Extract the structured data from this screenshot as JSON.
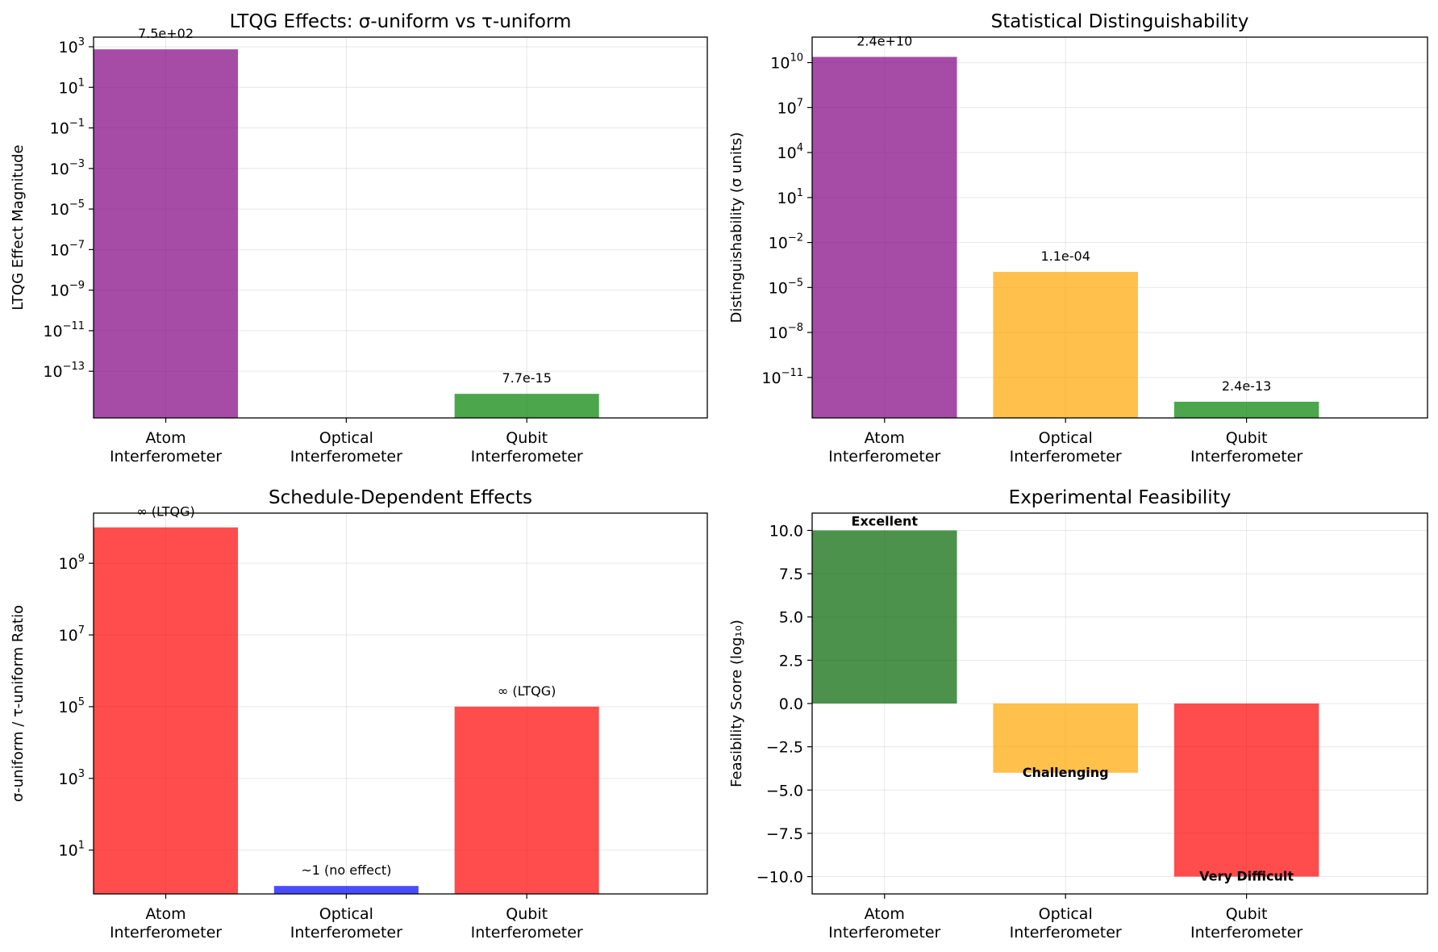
{
  "chart_data": [
    {
      "type": "bar",
      "title": "LTQG Effects: σ-uniform vs τ-uniform",
      "xlabel": "",
      "ylabel": "LTQG Effect Magnitude",
      "yscale": "log",
      "categories": [
        [
          "Atom",
          "Interferometer"
        ],
        [
          "Optical",
          "Interferometer"
        ],
        [
          "Qubit",
          "Interferometer"
        ]
      ],
      "values": [
        750,
        0,
        7.7e-15
      ],
      "colors": [
        "#800080",
        "#ffa500",
        "#008000"
      ],
      "bar_alpha": 0.7,
      "ylim": [
        5e-16,
        3000
      ],
      "yticks": [
        {
          "v": 1000.0,
          "e": "3"
        },
        {
          "v": 10.0,
          "e": "1"
        },
        {
          "v": 0.1,
          "e": "−1"
        },
        {
          "v": 0.001,
          "e": "−3"
        },
        {
          "v": 1e-05,
          "e": "−5"
        },
        {
          "v": 1e-07,
          "e": "−7"
        },
        {
          "v": 1e-09,
          "e": "−9"
        },
        {
          "v": 1e-11,
          "e": "−11"
        },
        {
          "v": 1e-13,
          "e": "−13"
        }
      ],
      "data_labels": [
        "7.5e+02",
        "",
        "7.7e-15"
      ],
      "grid": true
    },
    {
      "type": "bar",
      "title": "Statistical Distinguishability",
      "xlabel": "",
      "ylabel": "Distinguishability (σ units)",
      "yscale": "log",
      "categories": [
        [
          "Atom",
          "Interferometer"
        ],
        [
          "Optical",
          "Interferometer"
        ],
        [
          "Qubit",
          "Interferometer"
        ]
      ],
      "values": [
        24000000000.0,
        0.00011,
        2.4e-13
      ],
      "colors": [
        "#800080",
        "#ffa500",
        "#008000"
      ],
      "bar_alpha": 0.7,
      "ylim": [
        2e-14,
        500000000000.0
      ],
      "yticks": [
        {
          "v": 10000000000.0,
          "e": "10"
        },
        {
          "v": 10000000.0,
          "e": "7"
        },
        {
          "v": 10000.0,
          "e": "4"
        },
        {
          "v": 10.0,
          "e": "1"
        },
        {
          "v": 0.01,
          "e": "−2"
        },
        {
          "v": 1e-05,
          "e": "−5"
        },
        {
          "v": 1e-08,
          "e": "−8"
        },
        {
          "v": 1e-11,
          "e": "−11"
        }
      ],
      "data_labels": [
        "2.4e+10",
        "1.1e-04",
        "2.4e-13"
      ],
      "grid": true
    },
    {
      "type": "bar",
      "title": "Schedule-Dependent Effects",
      "xlabel": "",
      "ylabel": "σ-uniform / τ-uniform Ratio",
      "yscale": "log",
      "categories": [
        [
          "Atom",
          "Interferometer"
        ],
        [
          "Optical",
          "Interferometer"
        ],
        [
          "Qubit",
          "Interferometer"
        ]
      ],
      "values": [
        10000000000.0,
        1,
        100000.0
      ],
      "colors": [
        "#ff0000",
        "#0000ff",
        "#ff0000"
      ],
      "bar_alpha": 0.7,
      "ylim": [
        0.6,
        25000000000.0
      ],
      "yticks": [
        {
          "v": 1000000000.0,
          "e": "9"
        },
        {
          "v": 10000000.0,
          "e": "7"
        },
        {
          "v": 100000.0,
          "e": "5"
        },
        {
          "v": 1000.0,
          "e": "3"
        },
        {
          "v": 10.0,
          "e": "1"
        }
      ],
      "data_labels": [
        "∞ (LTQG)",
        "~1 (no effect)",
        "∞ (LTQG)"
      ],
      "grid": true
    },
    {
      "type": "bar",
      "title": "Experimental Feasibility",
      "xlabel": "",
      "ylabel": "Feasibility Score (log₁₀)",
      "yscale": "linear",
      "categories": [
        [
          "Atom",
          "Interferometer"
        ],
        [
          "Optical",
          "Interferometer"
        ],
        [
          "Qubit",
          "Interferometer"
        ]
      ],
      "values": [
        10,
        -4,
        -10
      ],
      "colors": [
        "#006400",
        "#ffa500",
        "#ff0000"
      ],
      "bar_alpha": 0.7,
      "ylim": [
        -11,
        11
      ],
      "yticks": [
        {
          "v": 10,
          "t": "10.0"
        },
        {
          "v": 7.5,
          "t": "7.5"
        },
        {
          "v": 5,
          "t": "5.0"
        },
        {
          "v": 2.5,
          "t": "2.5"
        },
        {
          "v": 0,
          "t": "0.0"
        },
        {
          "v": -2.5,
          "t": "−2.5"
        },
        {
          "v": -5,
          "t": "−5.0"
        },
        {
          "v": -7.5,
          "t": "−7.5"
        },
        {
          "v": -10,
          "t": "−10.0"
        }
      ],
      "data_labels": [
        "Excellent",
        "Challenging",
        "Very Difficult"
      ],
      "data_label_weight": "bold",
      "grid": true
    }
  ]
}
